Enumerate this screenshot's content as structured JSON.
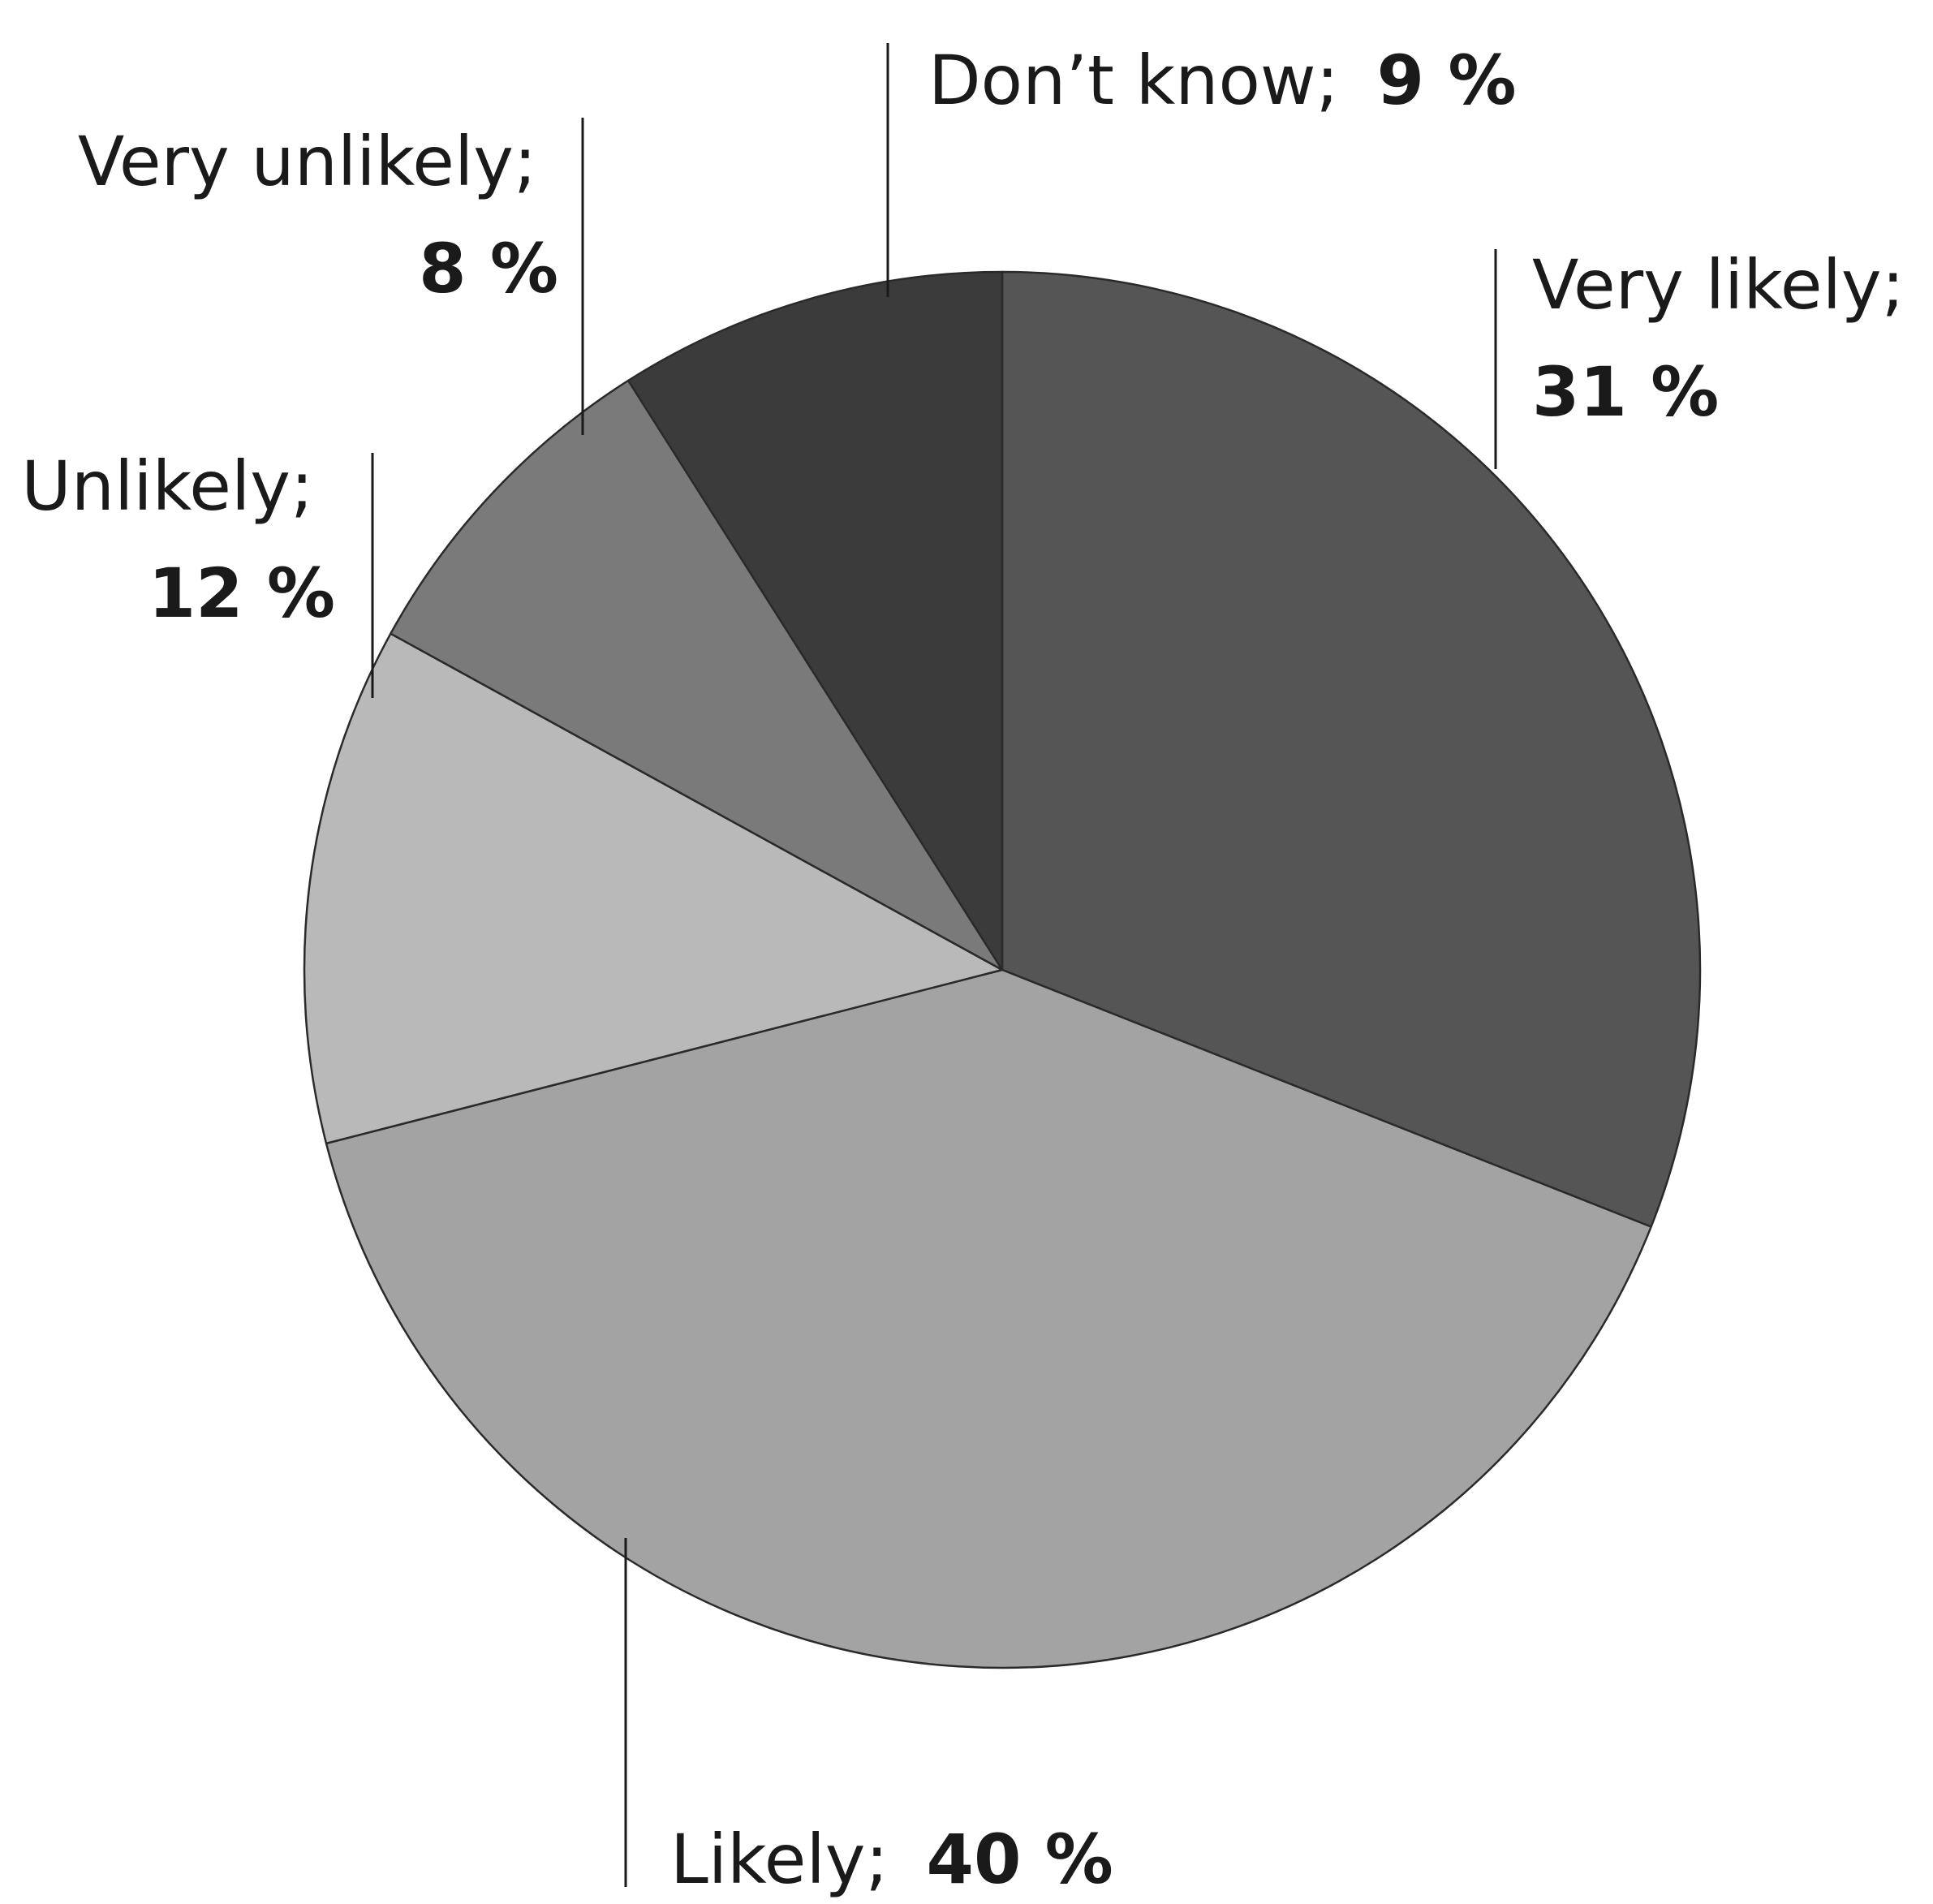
{
  "chart_data": {
    "type": "pie",
    "title": "",
    "start": "12 o'clock",
    "direction": "clockwise",
    "slices": [
      {
        "category": "Very likely;",
        "value": 31,
        "value_label": "31 %",
        "color": "#555555"
      },
      {
        "category": "Likely;",
        "value": 40,
        "value_label": "40 %",
        "color": "#a3a3a3"
      },
      {
        "category": "Unlikely;",
        "value": 12,
        "value_label": "12 %",
        "color": "#b9b9b9"
      },
      {
        "category": "Very unlikely;",
        "value": 8,
        "value_label": "8 %",
        "color": "#7a7a7a"
      },
      {
        "category": "Don’t know;",
        "value": 9,
        "value_label": "9 %",
        "color": "#3b3b3b"
      }
    ],
    "legend": "none (labels on leader lines)"
  }
}
